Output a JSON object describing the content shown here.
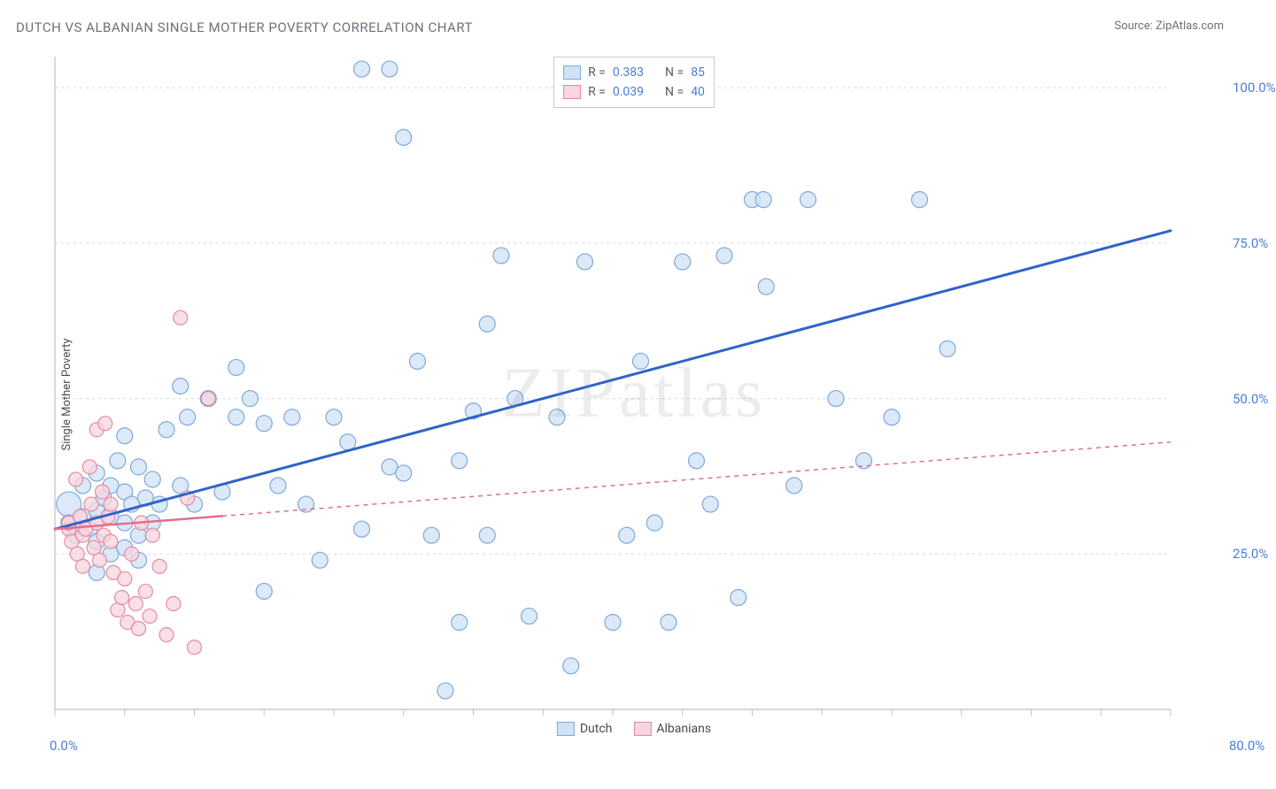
{
  "title": "DUTCH VS ALBANIAN SINGLE MOTHER POVERTY CORRELATION CHART",
  "source_label": "Source: ZipAtlas.com",
  "watermark": "ZIPatlas",
  "y_axis_label": "Single Mother Poverty",
  "chart": {
    "type": "scatter",
    "xlim": [
      0,
      80
    ],
    "ylim": [
      0,
      105
    ],
    "x_tick_origin": "0.0%",
    "x_tick_max": "80.0%",
    "x_ticks_minor_step": 5,
    "y_ticks": [
      {
        "v": 25,
        "label": "25.0%"
      },
      {
        "v": 50,
        "label": "50.0%"
      },
      {
        "v": 75,
        "label": "75.0%"
      },
      {
        "v": 100,
        "label": "100.0%"
      }
    ],
    "grid_color": "#d9d9de",
    "axis_color": "#bfbfc7",
    "tick_label_color": "#4a7fd6",
    "background_color": "#ffffff",
    "series": [
      {
        "name": "Dutch",
        "fill": "#cfe2f7",
        "stroke": "#7fa9d8",
        "marker_radius": 9,
        "trend": {
          "color": "#2f63c9",
          "width": 3,
          "dash": null,
          "dash_from_x": null,
          "x1": 0,
          "y1": 29,
          "x2": 80,
          "y2": 77
        },
        "stats": {
          "R_label": "R =",
          "R": "0.383",
          "N_label": "N =",
          "N": "85"
        },
        "points": [
          [
            1,
            33,
            14
          ],
          [
            1,
            30
          ],
          [
            1.5,
            28
          ],
          [
            2,
            31
          ],
          [
            2,
            36
          ],
          [
            2.5,
            29
          ],
          [
            3,
            32
          ],
          [
            3,
            27
          ],
          [
            3,
            38
          ],
          [
            3.5,
            34
          ],
          [
            4,
            31
          ],
          [
            4,
            36
          ],
          [
            4.5,
            40
          ],
          [
            5,
            30
          ],
          [
            5,
            35
          ],
          [
            5,
            44
          ],
          [
            5.5,
            33
          ],
          [
            6,
            39
          ],
          [
            6,
            28
          ],
          [
            6.5,
            34
          ],
          [
            7,
            37
          ],
          [
            7.5,
            33
          ],
          [
            8,
            45
          ],
          [
            9,
            52
          ],
          [
            9,
            36
          ],
          [
            9.5,
            47
          ],
          [
            10,
            33
          ],
          [
            11,
            50
          ],
          [
            12,
            35
          ],
          [
            13,
            47
          ],
          [
            13,
            55
          ],
          [
            14,
            50
          ],
          [
            15,
            46
          ],
          [
            15,
            19
          ],
          [
            16,
            36
          ],
          [
            17,
            47
          ],
          [
            18,
            33
          ],
          [
            19,
            24
          ],
          [
            20,
            47
          ],
          [
            21,
            43
          ],
          [
            22,
            103
          ],
          [
            22,
            29
          ],
          [
            24,
            39
          ],
          [
            24,
            103
          ],
          [
            25,
            92
          ],
          [
            25,
            38
          ],
          [
            26,
            56
          ],
          [
            27,
            28
          ],
          [
            28,
            3
          ],
          [
            29,
            40
          ],
          [
            29,
            14
          ],
          [
            30,
            48
          ],
          [
            31,
            28
          ],
          [
            31,
            62
          ],
          [
            32,
            73
          ],
          [
            33,
            50
          ],
          [
            34,
            15
          ],
          [
            36,
            47
          ],
          [
            37,
            7
          ],
          [
            38,
            72
          ],
          [
            40,
            14
          ],
          [
            41,
            28
          ],
          [
            42,
            56
          ],
          [
            43,
            30
          ],
          [
            44,
            14
          ],
          [
            45,
            72
          ],
          [
            46,
            40
          ],
          [
            47,
            33
          ],
          [
            48,
            73
          ],
          [
            49,
            18
          ],
          [
            50,
            82
          ],
          [
            50.8,
            82
          ],
          [
            51,
            68
          ],
          [
            53,
            36
          ],
          [
            54,
            82
          ],
          [
            56,
            50
          ],
          [
            58,
            40
          ],
          [
            60,
            47
          ],
          [
            62,
            82
          ],
          [
            64,
            58
          ],
          [
            3,
            22
          ],
          [
            4,
            25
          ],
          [
            5,
            26
          ],
          [
            6,
            24
          ],
          [
            7,
            30
          ]
        ]
      },
      {
        "name": "Albanians",
        "fill": "#f7d6de",
        "stroke": "#e68aa2",
        "marker_radius": 8,
        "trend": {
          "color": "#e36f8b",
          "width": 2.5,
          "dash": "5,5",
          "dash_from_x": 12,
          "x1": 0,
          "y1": 29,
          "x2": 80,
          "y2": 43
        },
        "stats": {
          "R_label": "R =",
          "R": "0.039",
          "N_label": "N =",
          "N": "40"
        },
        "points": [
          [
            1,
            29
          ],
          [
            1,
            30
          ],
          [
            1.2,
            27
          ],
          [
            1.5,
            37
          ],
          [
            1.6,
            25
          ],
          [
            1.8,
            31
          ],
          [
            2,
            28
          ],
          [
            2,
            23
          ],
          [
            2.2,
            29
          ],
          [
            2.5,
            39
          ],
          [
            2.6,
            33
          ],
          [
            2.8,
            26
          ],
          [
            3,
            30
          ],
          [
            3,
            45
          ],
          [
            3.2,
            24
          ],
          [
            3.5,
            28
          ],
          [
            3.6,
            46
          ],
          [
            3.8,
            31
          ],
          [
            4,
            27
          ],
          [
            4.2,
            22
          ],
          [
            4.5,
            16
          ],
          [
            4.8,
            18
          ],
          [
            5,
            21
          ],
          [
            5.2,
            14
          ],
          [
            5.5,
            25
          ],
          [
            5.8,
            17
          ],
          [
            6,
            13
          ],
          [
            6.2,
            30
          ],
          [
            6.5,
            19
          ],
          [
            6.8,
            15
          ],
          [
            7,
            28
          ],
          [
            7.5,
            23
          ],
          [
            8,
            12
          ],
          [
            8.5,
            17
          ],
          [
            9,
            63
          ],
          [
            9.5,
            34
          ],
          [
            10,
            10
          ],
          [
            11,
            50
          ],
          [
            4,
            33
          ],
          [
            3.4,
            35
          ]
        ]
      }
    ],
    "legend_bottom": [
      {
        "label": "Dutch",
        "fill": "#cfe2f7",
        "stroke": "#7fa9d8"
      },
      {
        "label": "Albanians",
        "fill": "#f7d6de",
        "stroke": "#e68aa2"
      }
    ]
  }
}
